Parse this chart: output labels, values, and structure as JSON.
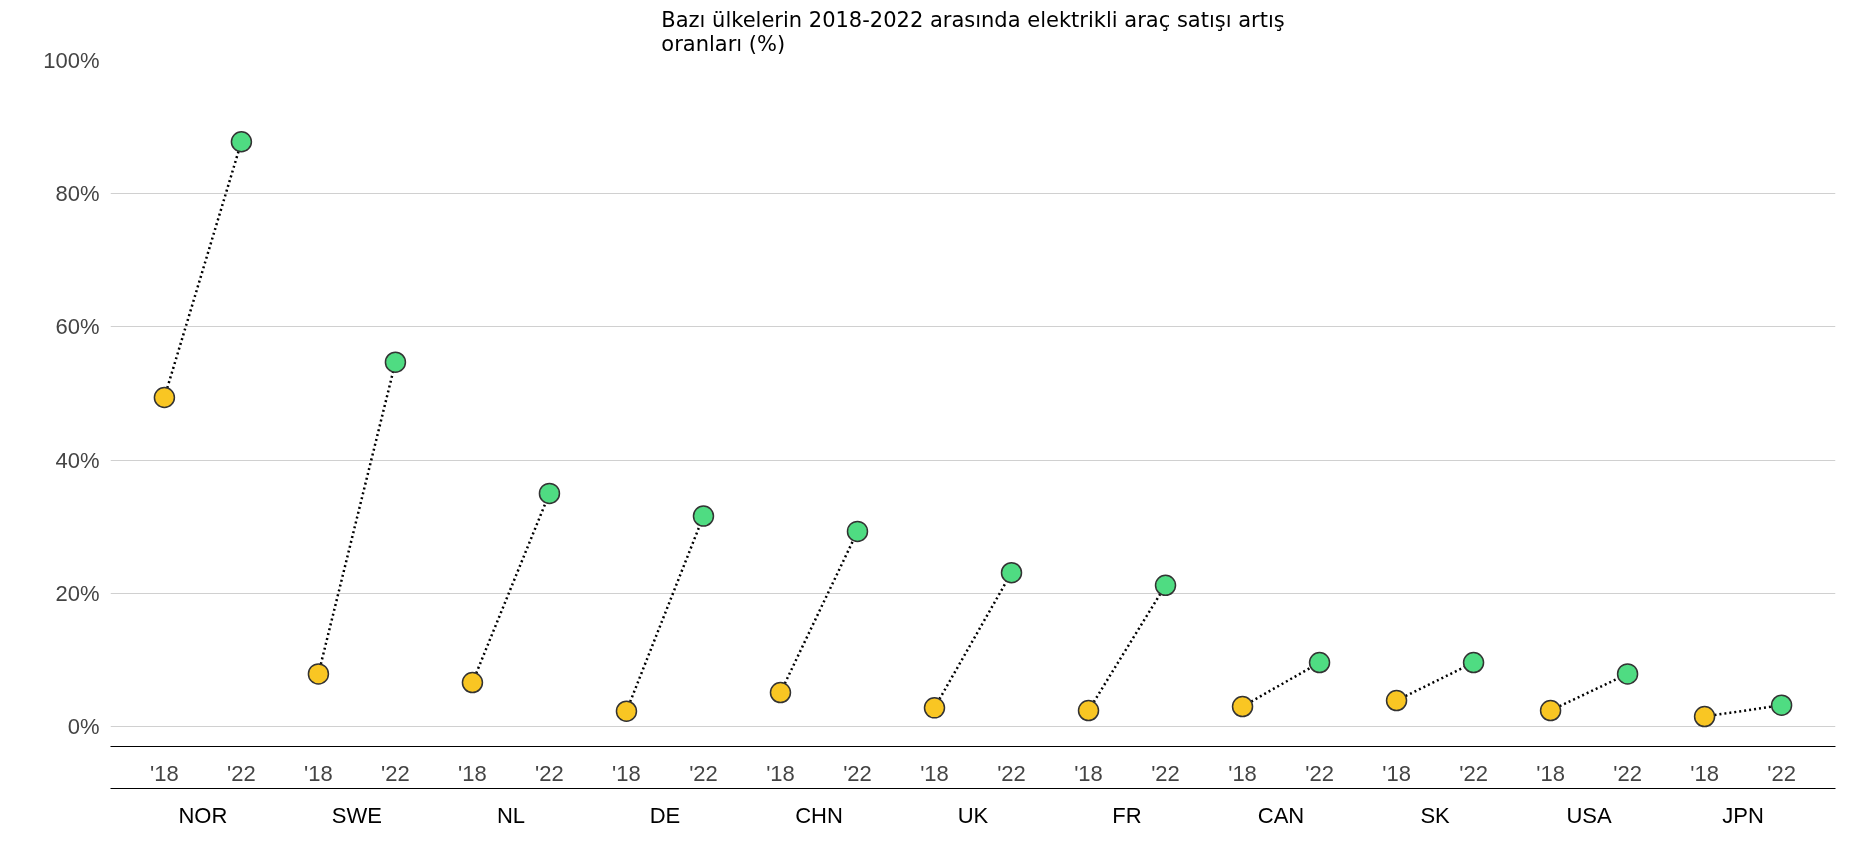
{
  "chart_data": {
    "type": "line",
    "title": "Bazı ülkelerin 2018-2022 arasında elektrikli araç satışı artış\noranları (%)",
    "categories": [
      "'18",
      "'22",
      "'18",
      "'22",
      "'18",
      "'22",
      "'18",
      "'22",
      "'18",
      "'22",
      "'18",
      "'22",
      "'18",
      "'22",
      "'18",
      "'22",
      "'18",
      "'22",
      "'18",
      "'22",
      "'18",
      "'22"
    ],
    "series": [
      {
        "color": "#000000",
        "colors": [
          "#f9c623",
          "#4fdc82",
          null,
          null,
          null,
          null,
          null,
          null,
          null,
          null,
          null,
          null,
          null,
          null,
          null,
          null,
          null,
          null,
          null,
          null,
          null,
          null
        ],
        "values": [
          49.4,
          87.8,
          null,
          null,
          null,
          null,
          null,
          null,
          null,
          null,
          null,
          null,
          null,
          null,
          null,
          null,
          null,
          null,
          null,
          null,
          null,
          null
        ]
      },
      {
        "color": "#000000",
        "colors": [
          null,
          null,
          "#f9c623",
          "#4fdc82",
          null,
          null,
          null,
          null,
          null,
          null,
          null,
          null,
          null,
          null,
          null,
          null,
          null,
          null,
          null,
          null,
          null,
          null
        ],
        "values": [
          null,
          null,
          7.9,
          54.7,
          null,
          null,
          null,
          null,
          null,
          null,
          null,
          null,
          null,
          null,
          null,
          null,
          null,
          null,
          null,
          null,
          null,
          null
        ]
      },
      {
        "color": "#000000",
        "colors": [
          null,
          null,
          null,
          null,
          "#f9c623",
          "#4fdc82",
          null,
          null,
          null,
          null,
          null,
          null,
          null,
          null,
          null,
          null,
          null,
          null,
          null,
          null,
          null,
          null
        ],
        "values": [
          null,
          null,
          null,
          null,
          6.6,
          35,
          null,
          null,
          null,
          null,
          null,
          null,
          null,
          null,
          null,
          null,
          null,
          null,
          null,
          null,
          null,
          null
        ]
      },
      {
        "color": "#000000",
        "colors": [
          null,
          null,
          null,
          null,
          null,
          null,
          "#f9c623",
          "#4fdc82",
          null,
          null,
          null,
          null,
          null,
          null,
          null,
          null,
          null,
          null,
          null,
          null,
          null,
          null
        ],
        "values": [
          null,
          null,
          null,
          null,
          null,
          null,
          2.3,
          31.6,
          null,
          null,
          null,
          null,
          null,
          null,
          null,
          null,
          null,
          null,
          null,
          null,
          null,
          null
        ]
      },
      {
        "color": "#000000",
        "colors": [
          null,
          null,
          null,
          null,
          null,
          null,
          null,
          null,
          "#f9c623",
          "#4fdc82",
          null,
          null,
          null,
          null,
          null,
          null,
          null,
          null,
          null,
          null,
          null,
          null
        ],
        "values": [
          null,
          null,
          null,
          null,
          null,
          null,
          null,
          null,
          5.1,
          29.3,
          null,
          null,
          null,
          null,
          null,
          null,
          null,
          null,
          null,
          null,
          null,
          null
        ]
      },
      {
        "color": "#000000",
        "colors": [
          null,
          null,
          null,
          null,
          null,
          null,
          null,
          null,
          null,
          null,
          "#f9c623",
          "#4fdc82",
          null,
          null,
          null,
          null,
          null,
          null,
          null,
          null,
          null,
          null
        ],
        "values": [
          null,
          null,
          null,
          null,
          null,
          null,
          null,
          null,
          null,
          null,
          2.8,
          23.1,
          null,
          null,
          null,
          null,
          null,
          null,
          null,
          null,
          null,
          null
        ]
      },
      {
        "color": "#000000",
        "colors": [
          null,
          null,
          null,
          null,
          null,
          null,
          null,
          null,
          null,
          null,
          null,
          null,
          "#f9c623",
          "#4fdc82",
          null,
          null,
          null,
          null,
          null,
          null,
          null,
          null
        ],
        "values": [
          null,
          null,
          null,
          null,
          null,
          null,
          null,
          null,
          null,
          null,
          null,
          null,
          2.4,
          21.2,
          null,
          null,
          null,
          null,
          null,
          null,
          null,
          null
        ]
      },
      {
        "color": "#000000",
        "colors": [
          null,
          null,
          null,
          null,
          null,
          null,
          null,
          null,
          null,
          null,
          null,
          null,
          null,
          null,
          "#f9c623",
          "#4fdc82",
          null,
          null,
          null,
          null,
          null,
          null
        ],
        "values": [
          null,
          null,
          null,
          null,
          null,
          null,
          null,
          null,
          null,
          null,
          null,
          null,
          null,
          null,
          3,
          9.6,
          null,
          null,
          null,
          null,
          null,
          null
        ]
      },
      {
        "color": "#000000",
        "colors": [
          null,
          null,
          null,
          null,
          null,
          null,
          null,
          null,
          null,
          null,
          null,
          null,
          null,
          null,
          null,
          null,
          "#f9c623",
          "#4fdc82",
          null,
          null,
          null,
          null
        ],
        "values": [
          null,
          null,
          null,
          null,
          null,
          null,
          null,
          null,
          null,
          null,
          null,
          null,
          null,
          null,
          null,
          null,
          3.9,
          9.6,
          null,
          null,
          null,
          null
        ]
      },
      {
        "color": "#000000",
        "colors": [
          null,
          null,
          null,
          null,
          null,
          null,
          null,
          null,
          null,
          null,
          null,
          null,
          null,
          null,
          null,
          null,
          null,
          null,
          "#f9c623",
          "#4fdc82",
          null,
          null
        ],
        "values": [
          null,
          null,
          null,
          null,
          null,
          null,
          null,
          null,
          null,
          null,
          null,
          null,
          null,
          null,
          null,
          null,
          null,
          null,
          2.4,
          7.9,
          null,
          null
        ]
      },
      {
        "color": "#000000",
        "colors": [
          null,
          null,
          null,
          null,
          null,
          null,
          null,
          null,
          null,
          null,
          null,
          null,
          null,
          null,
          null,
          null,
          null,
          null,
          null,
          null,
          "#f9c623",
          "#4fdc82"
        ],
        "values": [
          null,
          null,
          null,
          null,
          null,
          null,
          null,
          null,
          null,
          null,
          null,
          null,
          null,
          null,
          null,
          null,
          null,
          null,
          null,
          null,
          1.5,
          3.2
        ]
      }
    ],
    "ylim": [
      -3,
      100
    ],
    "yticks": [
      {
        "value": 0,
        "label": "0%"
      },
      {
        "value": 20,
        "label": "20%"
      },
      {
        "value": 40,
        "label": "40%"
      },
      {
        "value": 60,
        "label": "60%"
      },
      {
        "value": 80,
        "label": "80%"
      },
      {
        "value": 100,
        "label": "100%"
      }
    ],
    "annotations": [
      "NOR",
      "SWE",
      "NL",
      "DE",
      "CHN",
      "UK",
      "FR",
      "CAN",
      "SK",
      "USA",
      "JPN"
    ],
    "grid": "y",
    "marker": "circle",
    "line_style": "dotted"
  }
}
